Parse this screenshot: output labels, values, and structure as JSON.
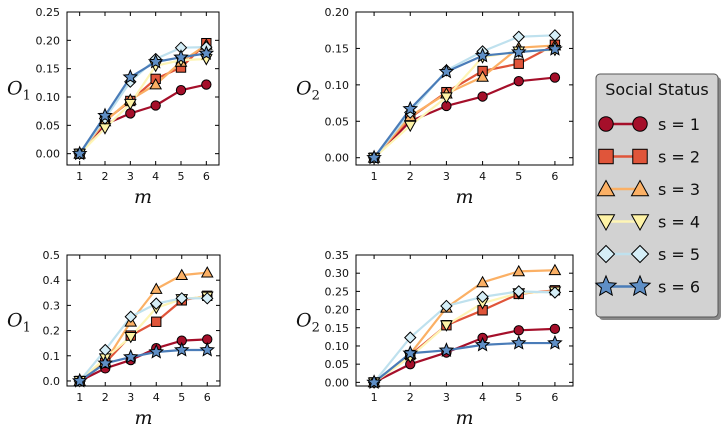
{
  "legend": {
    "title": "Social Status",
    "entries": [
      {
        "label": "s = 1",
        "color": "#d9ecf5"
      },
      {
        "label": "s = 2",
        "color": "#d9ecf5"
      },
      {
        "label": "s = 3",
        "color": "#d9ecf5"
      },
      {
        "label": "s = 4",
        "color": "#d9ecf5"
      },
      {
        "label": "s = 5",
        "color": "#d9ecf5"
      },
      {
        "label": "s = 6",
        "color": "#d9ecf5"
      }
    ]
  },
  "series_style": [
    {
      "name": "s = 1",
      "marker": "circle",
      "line": "#a50f2a",
      "fill": "#a50f2a"
    },
    {
      "name": "s = 2",
      "marker": "square",
      "line": "#e0553a",
      "fill": "#e0553a"
    },
    {
      "name": "s = 3",
      "marker": "triangle-up",
      "line": "#fbb065",
      "fill": "#fbb065"
    },
    {
      "name": "s = 4",
      "marker": "triangle-down",
      "line": "#fef5b5",
      "fill": "#fef3a6"
    },
    {
      "name": "s = 5",
      "marker": "diamond",
      "line": "#bfe1ee",
      "fill": "#d5eef7"
    },
    {
      "name": "s = 6",
      "marker": "star",
      "line": "#4a7cb8",
      "fill": "#5f8fc6"
    }
  ],
  "chart_data": [
    {
      "type": "line",
      "position": "top-left",
      "xlabel": "m",
      "ylabel": "O",
      "ylabel_sub": "1",
      "x": [
        1,
        2,
        3,
        4,
        5,
        6
      ],
      "xticks": [
        "1",
        "2",
        "3",
        "4",
        "5",
        "6"
      ],
      "ylim": [
        -0.02,
        0.25
      ],
      "yticks": [
        "0.00",
        "0.05",
        "0.10",
        "0.15",
        "0.20",
        "0.25"
      ],
      "series": [
        {
          "name": "s = 1",
          "values": [
            0.0,
            0.052,
            0.071,
            0.085,
            0.112,
            0.122
          ]
        },
        {
          "name": "s = 2",
          "values": [
            0.0,
            0.058,
            0.093,
            0.132,
            0.152,
            0.195
          ]
        },
        {
          "name": "s = 3",
          "values": [
            0.0,
            0.057,
            0.095,
            0.122,
            0.162,
            0.192
          ]
        },
        {
          "name": "s = 4",
          "values": [
            0.0,
            0.045,
            0.088,
            0.155,
            0.165,
            0.167
          ]
        },
        {
          "name": "s = 5",
          "values": [
            0.0,
            0.062,
            0.127,
            0.167,
            0.187,
            0.188
          ]
        },
        {
          "name": "s = 6",
          "values": [
            0.0,
            0.067,
            0.135,
            0.162,
            0.17,
            0.177
          ]
        }
      ]
    },
    {
      "type": "line",
      "position": "top-right",
      "xlabel": "m",
      "ylabel": "O",
      "ylabel_sub": "2",
      "x": [
        1,
        2,
        3,
        4,
        5,
        6
      ],
      "xticks": [
        "1",
        "2",
        "3",
        "4",
        "5",
        "6"
      ],
      "ylim": [
        -0.01,
        0.2
      ],
      "yticks": [
        "0.00",
        "0.05",
        "0.10",
        "0.15",
        "0.20"
      ],
      "series": [
        {
          "name": "s = 1",
          "values": [
            0.0,
            0.05,
            0.071,
            0.084,
            0.105,
            0.11
          ]
        },
        {
          "name": "s = 2",
          "values": [
            0.0,
            0.055,
            0.09,
            0.119,
            0.129,
            0.155
          ]
        },
        {
          "name": "s = 3",
          "values": [
            0.0,
            0.057,
            0.088,
            0.111,
            0.151,
            0.154
          ]
        },
        {
          "name": "s = 4",
          "values": [
            0.0,
            0.044,
            0.083,
            0.138,
            0.146,
            0.148
          ]
        },
        {
          "name": "s = 5",
          "values": [
            0.0,
            0.062,
            0.12,
            0.146,
            0.166,
            0.168
          ]
        },
        {
          "name": "s = 6",
          "values": [
            0.0,
            0.067,
            0.118,
            0.14,
            0.145,
            0.149
          ]
        }
      ]
    },
    {
      "type": "line",
      "position": "bottom-left",
      "xlabel": "m",
      "ylabel": "O",
      "ylabel_sub": "1",
      "x": [
        1,
        2,
        3,
        4,
        5,
        6
      ],
      "xticks": [
        "1",
        "2",
        "3",
        "4",
        "5",
        "6"
      ],
      "ylim": [
        -0.02,
        0.5
      ],
      "yticks": [
        "0.0",
        "0.1",
        "0.2",
        "0.3",
        "0.4",
        "0.5"
      ],
      "series": [
        {
          "name": "s = 1",
          "values": [
            0.0,
            0.05,
            0.083,
            0.13,
            0.16,
            0.165
          ]
        },
        {
          "name": "s = 2",
          "values": [
            0.0,
            0.072,
            0.18,
            0.235,
            0.32,
            0.338
          ]
        },
        {
          "name": "s = 3",
          "values": [
            0.0,
            0.075,
            0.235,
            0.365,
            0.42,
            0.43
          ]
        },
        {
          "name": "s = 4",
          "values": [
            0.0,
            0.09,
            0.175,
            0.29,
            0.325,
            0.335
          ]
        },
        {
          "name": "s = 5",
          "values": [
            0.0,
            0.123,
            0.255,
            0.307,
            0.328,
            0.328
          ]
        },
        {
          "name": "s = 6",
          "values": [
            0.0,
            0.07,
            0.095,
            0.115,
            0.123,
            0.123
          ]
        }
      ]
    },
    {
      "type": "line",
      "position": "bottom-right",
      "xlabel": "m",
      "ylabel": "O",
      "ylabel_sub": "2",
      "x": [
        1,
        2,
        3,
        4,
        5,
        6
      ],
      "xticks": [
        "1",
        "2",
        "3",
        "4",
        "5",
        "6"
      ],
      "ylim": [
        -0.01,
        0.35
      ],
      "yticks": [
        "0.00",
        "0.05",
        "0.10",
        "0.15",
        "0.20",
        "0.25",
        "0.30",
        "0.35"
      ],
      "series": [
        {
          "name": "s = 1",
          "values": [
            0.0,
            0.05,
            0.082,
            0.122,
            0.143,
            0.147
          ]
        },
        {
          "name": "s = 2",
          "values": [
            0.0,
            0.075,
            0.157,
            0.198,
            0.243,
            0.253
          ]
        },
        {
          "name": "s = 3",
          "values": [
            0.0,
            0.078,
            0.205,
            0.275,
            0.305,
            0.308
          ]
        },
        {
          "name": "s = 4",
          "values": [
            0.0,
            0.07,
            0.157,
            0.218,
            0.245,
            0.25
          ]
        },
        {
          "name": "s = 5",
          "values": [
            0.0,
            0.123,
            0.21,
            0.235,
            0.25,
            0.247
          ]
        },
        {
          "name": "s = 6",
          "values": [
            0.0,
            0.08,
            0.088,
            0.103,
            0.108,
            0.108
          ]
        }
      ]
    }
  ]
}
